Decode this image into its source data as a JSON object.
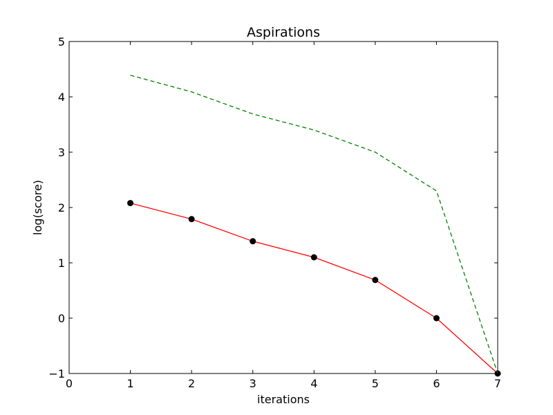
{
  "chart_data": {
    "type": "line",
    "title": "Aspirations",
    "xlabel": "iterations",
    "ylabel": "log(score)",
    "xlim": [
      0,
      7
    ],
    "ylim": [
      -1,
      5
    ],
    "xticks": [
      0,
      1,
      2,
      3,
      4,
      5,
      6,
      7
    ],
    "yticks": [
      -1,
      0,
      1,
      2,
      3,
      4,
      5
    ],
    "xtick_labels": [
      "0",
      "1",
      "2",
      "3",
      "4",
      "5",
      "6",
      "7"
    ],
    "ytick_labels": [
      "−1",
      "0",
      "1",
      "2",
      "3",
      "4",
      "5"
    ],
    "grid": false,
    "series": [
      {
        "x": [
          1,
          2,
          3,
          4,
          5,
          6,
          7
        ],
        "values": [
          2.08,
          1.79,
          1.39,
          1.1,
          0.69,
          0.0,
          -1.0
        ],
        "color": "#ff0000",
        "line_style": "solid",
        "marker": "circle",
        "marker_color": "#000000"
      },
      {
        "x": [
          1,
          2,
          3,
          4,
          5,
          6,
          7
        ],
        "values": [
          4.39,
          4.09,
          3.69,
          3.4,
          3.0,
          2.3,
          -1.0
        ],
        "color": "#008000",
        "line_style": "dashed",
        "marker": "none"
      }
    ]
  }
}
